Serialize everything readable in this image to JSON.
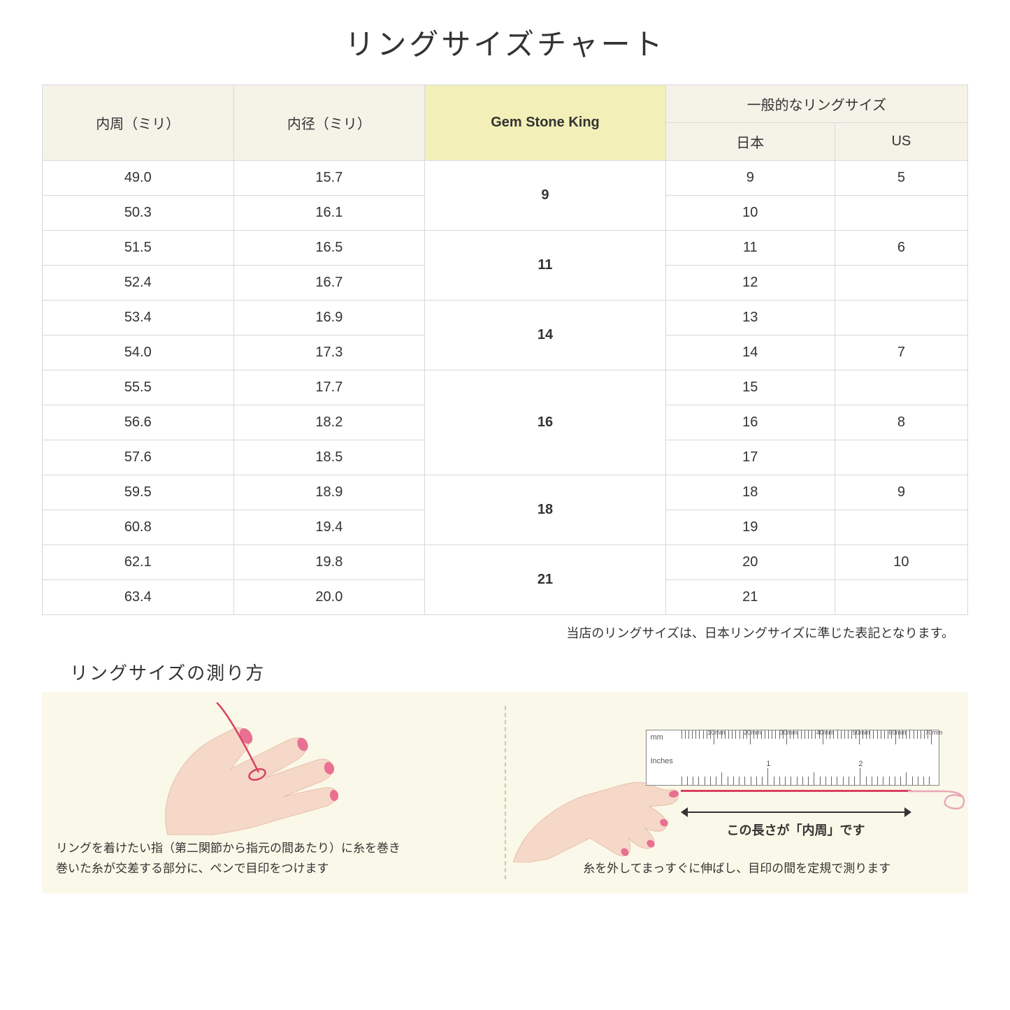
{
  "title": "リングサイズチャート",
  "table": {
    "headers": {
      "circumference": "内周（ミリ）",
      "diameter": "内径（ミリ）",
      "gsk": "Gem Stone King",
      "general_group": "一般的なリングサイズ",
      "japan": "日本",
      "us": "US"
    },
    "highlight_bg": "#f2f0b8",
    "header_bg": "#f5f2e8",
    "border_color": "#d8d8d8",
    "groups": [
      {
        "gsk": "9",
        "rows": [
          {
            "c": "49.0",
            "d": "15.7",
            "jp": "9",
            "us": "5"
          },
          {
            "c": "50.3",
            "d": "16.1",
            "jp": "10",
            "us": ""
          }
        ]
      },
      {
        "gsk": "11",
        "rows": [
          {
            "c": "51.5",
            "d": "16.5",
            "jp": "11",
            "us": "6"
          },
          {
            "c": "52.4",
            "d": "16.7",
            "jp": "12",
            "us": ""
          }
        ]
      },
      {
        "gsk": "14",
        "rows": [
          {
            "c": "53.4",
            "d": "16.9",
            "jp": "13",
            "us": ""
          },
          {
            "c": "54.0",
            "d": "17.3",
            "jp": "14",
            "us": "7"
          }
        ]
      },
      {
        "gsk": "16",
        "rows": [
          {
            "c": "55.5",
            "d": "17.7",
            "jp": "15",
            "us": ""
          },
          {
            "c": "56.6",
            "d": "18.2",
            "jp": "16",
            "us": "8"
          },
          {
            "c": "57.6",
            "d": "18.5",
            "jp": "17",
            "us": ""
          }
        ]
      },
      {
        "gsk": "18",
        "rows": [
          {
            "c": "59.5",
            "d": "18.9",
            "jp": "18",
            "us": "9"
          },
          {
            "c": "60.8",
            "d": "19.4",
            "jp": "19",
            "us": ""
          }
        ]
      },
      {
        "gsk": "21",
        "rows": [
          {
            "c": "62.1",
            "d": "19.8",
            "jp": "20",
            "us": "10"
          },
          {
            "c": "63.4",
            "d": "20.0",
            "jp": "21",
            "us": ""
          }
        ]
      }
    ]
  },
  "footnote": "当店のリングサイズは、日本リングサイズに準じた表記となります。",
  "measure": {
    "title": "リングサイズの測り方",
    "panel_bg": "#faf8e8",
    "left_caption_1": "リングを着けたい指（第二関節から指元の間あたり）に糸を巻き",
    "left_caption_2": "巻いた糸が交差する部分に、ペンで目印をつけます",
    "right_caption": "糸を外してまっすぐに伸ばし、目印の間を定規で測ります",
    "arrow_label": "この長さが「内周」です",
    "ruler": {
      "mm_label": "mm",
      "in_label": "Inches",
      "mm_marks": [
        "10mm",
        "20mm",
        "30mm",
        "40mm",
        "50mm",
        "60mm",
        "70mm"
      ],
      "in_marks": [
        "1",
        "2"
      ]
    },
    "colors": {
      "skin": "#f5d8c8",
      "skin_shadow": "#e8c0ac",
      "nail": "#e87090",
      "thread": "#d94060"
    }
  }
}
